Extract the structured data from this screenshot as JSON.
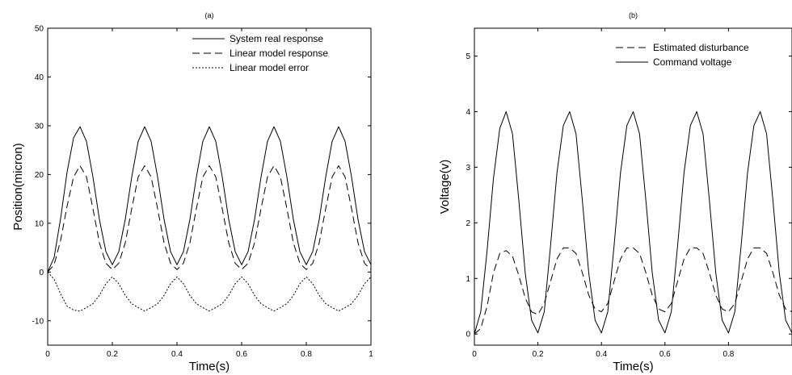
{
  "chart_data": [
    {
      "type": "line",
      "title": "(a)",
      "xlabel": "Time(s)",
      "ylabel": "Position(micron)",
      "xlim": [
        0,
        1
      ],
      "ylim": [
        -15,
        50
      ],
      "xticks": [
        0,
        0.2,
        0.4,
        0.6,
        0.8,
        1
      ],
      "xtick_labels": [
        "0",
        "0.2",
        "0.4",
        "0.6",
        "0.8",
        "1"
      ],
      "yticks": [
        -10,
        0,
        10,
        20,
        30,
        40,
        50
      ],
      "ytick_labels": [
        "-10",
        "0",
        "10",
        "20",
        "30",
        "40",
        "50"
      ],
      "grid": false,
      "legend_position": "top-right",
      "series": [
        {
          "name": "System real response",
          "style": "solid",
          "x": [
            0,
            0.02,
            0.04,
            0.06,
            0.08,
            0.1,
            0.12,
            0.14,
            0.16,
            0.18,
            0.2,
            0.22,
            0.24,
            0.26,
            0.28,
            0.3,
            0.32,
            0.34,
            0.36,
            0.38,
            0.4,
            0.42,
            0.44,
            0.46,
            0.48,
            0.5,
            0.52,
            0.54,
            0.56,
            0.58,
            0.6,
            0.62,
            0.64,
            0.66,
            0.68,
            0.7,
            0.72,
            0.74,
            0.76,
            0.78,
            0.8,
            0.82,
            0.84,
            0.86,
            0.88,
            0.9,
            0.92,
            0.94,
            0.96,
            0.98,
            1.0
          ],
          "y": [
            0,
            3,
            11,
            20.5,
            27.5,
            29.8,
            26.8,
            19.5,
            10.8,
            4.2,
            1.5,
            4.2,
            10.8,
            19.5,
            26.8,
            29.8,
            26.8,
            19.5,
            10.8,
            4.2,
            1.5,
            4.2,
            10.8,
            19.5,
            26.8,
            29.8,
            26.8,
            19.5,
            10.8,
            4.2,
            1.5,
            4.2,
            10.8,
            19.5,
            26.8,
            29.8,
            26.8,
            19.5,
            10.8,
            4.2,
            1.5,
            4.2,
            10.8,
            19.5,
            26.8,
            29.8,
            26.8,
            19.5,
            10.8,
            4.2,
            1.5
          ]
        },
        {
          "name": "Linear model response",
          "style": "dashed",
          "x": [
            0,
            0.02,
            0.04,
            0.06,
            0.08,
            0.1,
            0.12,
            0.14,
            0.16,
            0.18,
            0.2,
            0.22,
            0.24,
            0.26,
            0.28,
            0.3,
            0.32,
            0.34,
            0.36,
            0.38,
            0.4,
            0.42,
            0.44,
            0.46,
            0.48,
            0.5,
            0.52,
            0.54,
            0.56,
            0.58,
            0.6,
            0.62,
            0.64,
            0.66,
            0.68,
            0.7,
            0.72,
            0.74,
            0.76,
            0.78,
            0.8,
            0.82,
            0.84,
            0.86,
            0.88,
            0.9,
            0.92,
            0.94,
            0.96,
            0.98,
            1.0
          ],
          "y": [
            0,
            1.5,
            6.5,
            13.5,
            19.5,
            21.8,
            19.5,
            13,
            6,
            1.8,
            0.5,
            1.8,
            6,
            13,
            19.5,
            21.8,
            19.5,
            13,
            6,
            1.8,
            0.5,
            1.8,
            6,
            13,
            19.5,
            21.8,
            19.5,
            13,
            6,
            1.8,
            0.5,
            1.8,
            6,
            13,
            19.5,
            21.8,
            19.5,
            13,
            6,
            1.8,
            0.5,
            1.8,
            6,
            13,
            19.5,
            21.8,
            19.5,
            13,
            6,
            1.8,
            0.5
          ]
        },
        {
          "name": "Linear model error",
          "style": "dotted",
          "x": [
            0,
            0.02,
            0.04,
            0.06,
            0.08,
            0.1,
            0.12,
            0.14,
            0.16,
            0.18,
            0.2,
            0.22,
            0.24,
            0.26,
            0.28,
            0.3,
            0.32,
            0.34,
            0.36,
            0.38,
            0.4,
            0.42,
            0.44,
            0.46,
            0.48,
            0.5,
            0.52,
            0.54,
            0.56,
            0.58,
            0.6,
            0.62,
            0.64,
            0.66,
            0.68,
            0.7,
            0.72,
            0.74,
            0.76,
            0.78,
            0.8,
            0.82,
            0.84,
            0.86,
            0.88,
            0.9,
            0.92,
            0.94,
            0.96,
            0.98,
            1.0
          ],
          "y": [
            0,
            -1.5,
            -4.5,
            -7,
            -7.8,
            -8,
            -7.3,
            -6.5,
            -4.8,
            -2.4,
            -1,
            -2.4,
            -4.8,
            -6.5,
            -7.3,
            -8,
            -7.3,
            -6.5,
            -4.8,
            -2.4,
            -1,
            -2.4,
            -4.8,
            -6.5,
            -7.3,
            -8,
            -7.3,
            -6.5,
            -4.8,
            -2.4,
            -1,
            -2.4,
            -4.8,
            -6.5,
            -7.3,
            -8,
            -7.3,
            -6.5,
            -4.8,
            -2.4,
            -1,
            -2.4,
            -4.8,
            -6.5,
            -7.3,
            -8,
            -7.3,
            -6.5,
            -4.8,
            -2.4,
            -1
          ]
        }
      ]
    },
    {
      "type": "line",
      "title": "(b)",
      "xlabel": "Time(s)",
      "ylabel": "Voltage(v)",
      "xlim": [
        0,
        1
      ],
      "ylim": [
        -0.2,
        5.5
      ],
      "xticks": [
        0,
        0.2,
        0.4,
        0.6,
        0.8
      ],
      "xtick_labels": [
        "0",
        "0.2",
        "0.4",
        "0.6",
        "0.8"
      ],
      "yticks": [
        0,
        1,
        2,
        3,
        4,
        5
      ],
      "ytick_labels": [
        "0",
        "1",
        "2",
        "3",
        "4",
        "5"
      ],
      "grid": false,
      "legend_position": "top-right",
      "series": [
        {
          "name": "Estimated disturbance",
          "style": "dashed",
          "x": [
            0,
            0.02,
            0.04,
            0.06,
            0.08,
            0.1,
            0.12,
            0.14,
            0.16,
            0.18,
            0.2,
            0.22,
            0.24,
            0.26,
            0.28,
            0.3,
            0.32,
            0.34,
            0.36,
            0.38,
            0.4,
            0.42,
            0.44,
            0.46,
            0.48,
            0.5,
            0.52,
            0.54,
            0.56,
            0.58,
            0.6,
            0.62,
            0.64,
            0.66,
            0.68,
            0.7,
            0.72,
            0.74,
            0.76,
            0.78,
            0.8,
            0.82,
            0.84,
            0.86,
            0.88,
            0.9,
            0.92,
            0.94,
            0.96,
            0.98,
            1.0
          ],
          "y": [
            0,
            0.1,
            0.5,
            1.1,
            1.45,
            1.5,
            1.4,
            1.05,
            0.65,
            0.4,
            0.35,
            0.55,
            0.95,
            1.35,
            1.55,
            1.55,
            1.45,
            1.1,
            0.7,
            0.45,
            0.4,
            0.55,
            0.95,
            1.35,
            1.55,
            1.55,
            1.45,
            1.1,
            0.7,
            0.45,
            0.4,
            0.55,
            0.95,
            1.35,
            1.55,
            1.55,
            1.45,
            1.1,
            0.7,
            0.45,
            0.4,
            0.55,
            0.95,
            1.35,
            1.55,
            1.55,
            1.45,
            1.1,
            0.7,
            0.45,
            0.4
          ]
        },
        {
          "name": "Command voltage",
          "style": "solid",
          "x": [
            0,
            0.02,
            0.04,
            0.06,
            0.08,
            0.1,
            0.12,
            0.14,
            0.16,
            0.18,
            0.2,
            0.22,
            0.24,
            0.26,
            0.28,
            0.3,
            0.32,
            0.34,
            0.36,
            0.38,
            0.4,
            0.42,
            0.44,
            0.46,
            0.48,
            0.5,
            0.52,
            0.54,
            0.56,
            0.58,
            0.6,
            0.62,
            0.64,
            0.66,
            0.68,
            0.7,
            0.72,
            0.74,
            0.76,
            0.78,
            0.8,
            0.82,
            0.84,
            0.86,
            0.88,
            0.9,
            0.92,
            0.94,
            0.96,
            0.98,
            1.0
          ],
          "y": [
            0,
            0.4,
            1.5,
            2.8,
            3.7,
            4.0,
            3.6,
            2.4,
            1.1,
            0.25,
            0.02,
            0.4,
            1.6,
            2.9,
            3.75,
            4.0,
            3.6,
            2.4,
            1.1,
            0.25,
            0.02,
            0.4,
            1.6,
            2.9,
            3.75,
            4.0,
            3.6,
            2.4,
            1.1,
            0.25,
            0.02,
            0.4,
            1.6,
            2.9,
            3.75,
            4.0,
            3.6,
            2.4,
            1.1,
            0.25,
            0.02,
            0.4,
            1.6,
            2.9,
            3.75,
            4.0,
            3.6,
            2.4,
            1.1,
            0.25,
            0.02
          ]
        }
      ]
    }
  ]
}
